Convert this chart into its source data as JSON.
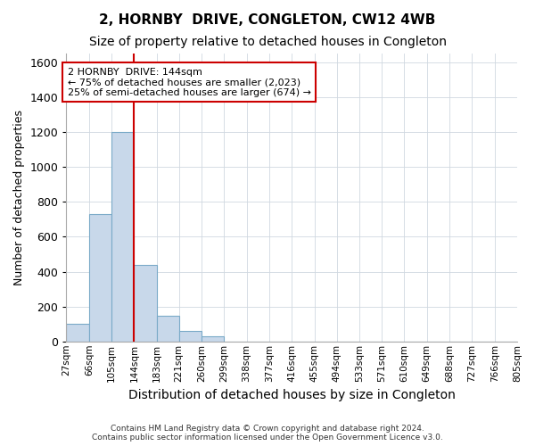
{
  "title": "2, HORNBY  DRIVE, CONGLETON, CW12 4WB",
  "subtitle": "Size of property relative to detached houses in Congleton",
  "xlabel": "Distribution of detached houses by size in Congleton",
  "ylabel": "Number of detached properties",
  "bin_labels": [
    "27sqm",
    "66sqm",
    "105sqm",
    "144sqm",
    "183sqm",
    "221sqm",
    "260sqm",
    "299sqm",
    "338sqm",
    "377sqm",
    "416sqm",
    "455sqm",
    "494sqm",
    "533sqm",
    "571sqm",
    "610sqm",
    "649sqm",
    "688sqm",
    "727sqm",
    "766sqm",
    "805sqm"
  ],
  "bar_values": [
    100,
    730,
    1200,
    440,
    145,
    60,
    30,
    0,
    0,
    0,
    0,
    0,
    0,
    0,
    0,
    0,
    0,
    0,
    0,
    0
  ],
  "bin_edges": [
    27,
    66,
    105,
    144,
    183,
    221,
    260,
    299,
    338,
    377,
    416,
    455,
    494,
    533,
    571,
    610,
    649,
    688,
    727,
    766,
    805
  ],
  "bar_color": "#c8d8ea",
  "bar_edge_color": "#7aaac8",
  "vline_x": 144,
  "vline_color": "#cc0000",
  "annotation_text": "2 HORNBY  DRIVE: 144sqm\n← 75% of detached houses are smaller (2,023)\n25% of semi-detached houses are larger (674) →",
  "annotation_box_color": "#ffffff",
  "annotation_box_edge": "#cc0000",
  "ylim": [
    0,
    1650
  ],
  "yticks": [
    0,
    200,
    400,
    600,
    800,
    1000,
    1200,
    1400,
    1600
  ],
  "footer": "Contains HM Land Registry data © Crown copyright and database right 2024.\nContains public sector information licensed under the Open Government Licence v3.0.",
  "bg_color": "#ffffff",
  "grid_color": "#d0d8e0",
  "title_fontsize": 11,
  "subtitle_fontsize": 10,
  "xlabel_fontsize": 10,
  "ylabel_fontsize": 9
}
